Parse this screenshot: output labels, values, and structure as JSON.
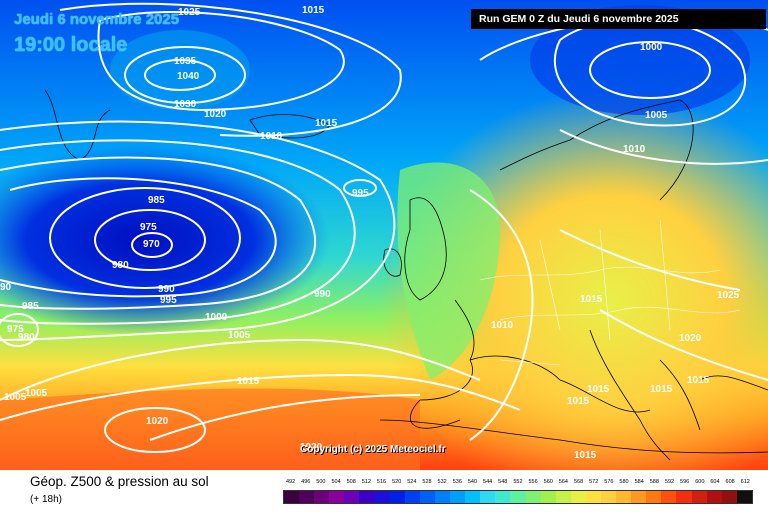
{
  "header": {
    "date_line": "Jeudi 6 novembre 2025",
    "time_line": "19:00 locale",
    "run_label": "Run GEM 0 Z du Jeudi 6 novembre 2025"
  },
  "footer": {
    "title": "Géop. Z500 & pression au sol",
    "subtitle": "(+ 18h)",
    "copyright": "Copyright (c) 2025 Meteociel.fr"
  },
  "scale": {
    "values": [
      "492",
      "496",
      "500",
      "504",
      "508",
      "512",
      "516",
      "520",
      "524",
      "528",
      "532",
      "536",
      "540",
      "544",
      "548",
      "552",
      "556",
      "560",
      "564",
      "568",
      "572",
      "576",
      "580",
      "584",
      "588",
      "592",
      "596",
      "600",
      "604",
      "608",
      "612"
    ],
    "colors": [
      "#3a0040",
      "#4e005a",
      "#6b0078",
      "#8a009a",
      "#6a00b8",
      "#3b00c8",
      "#1a10d8",
      "#0020e6",
      "#0040f0",
      "#0060f4",
      "#0080f8",
      "#00a0fa",
      "#00c0fb",
      "#30d8f0",
      "#40e8d0",
      "#60f0a0",
      "#80f070",
      "#a0f050",
      "#c8f048",
      "#e8f048",
      "#ffe040",
      "#ffd040",
      "#ffb830",
      "#ff9820",
      "#ff7810",
      "#ff5010",
      "#f03010",
      "#d02010",
      "#b01010",
      "#901010",
      "#101010"
    ]
  },
  "isobars": {
    "labels": [
      {
        "text": "1025",
        "role": "isobar-label"
      },
      {
        "text": "1015",
        "role": "isobar-label"
      },
      {
        "text": "1035",
        "role": "isobar-label"
      },
      {
        "text": "1040",
        "role": "isobar-label"
      },
      {
        "text": "1030",
        "role": "isobar-label"
      },
      {
        "text": "1020",
        "role": "isobar-label"
      },
      {
        "text": "1010",
        "role": "isobar-label"
      },
      {
        "text": "1015",
        "role": "isobar-label"
      },
      {
        "text": "995",
        "role": "isobar-label"
      },
      {
        "text": "985",
        "role": "isobar-label"
      },
      {
        "text": "975",
        "role": "isobar-label"
      },
      {
        "text": "970",
        "role": "isobar-label"
      },
      {
        "text": "980",
        "role": "isobar-label"
      },
      {
        "text": "990",
        "role": "isobar-label"
      },
      {
        "text": "995",
        "role": "isobar-label"
      },
      {
        "text": "1000",
        "role": "isobar-label"
      },
      {
        "text": "1005",
        "role": "isobar-label"
      },
      {
        "text": "990",
        "role": "isobar-label"
      },
      {
        "text": "985",
        "role": "isobar-label"
      },
      {
        "text": "975",
        "role": "isobar-label"
      },
      {
        "text": "980",
        "role": "isobar-label"
      },
      {
        "text": "90",
        "role": "isobar-label"
      },
      {
        "text": "1005",
        "role": "isobar-label"
      },
      {
        "text": "1005",
        "role": "isobar-label"
      },
      {
        "text": "1015",
        "role": "isobar-label"
      },
      {
        "text": "1020",
        "role": "isobar-label"
      },
      {
        "text": "1020",
        "role": "isobar-label"
      },
      {
        "text": "1000",
        "role": "isobar-label"
      },
      {
        "text": "1005",
        "role": "isobar-label"
      },
      {
        "text": "1010",
        "role": "isobar-label"
      },
      {
        "text": "1015",
        "role": "isobar-label"
      },
      {
        "text": "1025",
        "role": "isobar-label"
      },
      {
        "text": "1010",
        "role": "isobar-label"
      },
      {
        "text": "1020",
        "role": "isobar-label"
      },
      {
        "text": "1015",
        "role": "isobar-label"
      },
      {
        "text": "1015",
        "role": "isobar-label"
      },
      {
        "text": "1015",
        "role": "isobar-label"
      },
      {
        "text": "1015",
        "role": "isobar-label"
      },
      {
        "text": "1015",
        "role": "isobar-label"
      }
    ]
  }
}
